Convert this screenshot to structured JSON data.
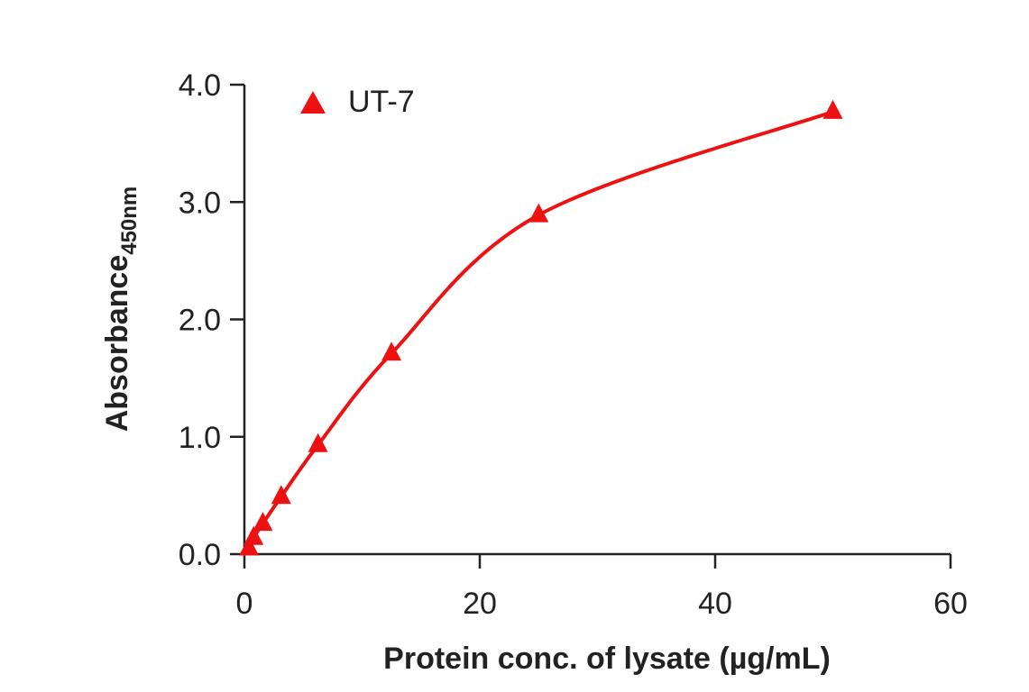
{
  "chart_data": {
    "type": "scatter",
    "title": "",
    "xlabel": "Protein conc. of lysate (µg/mL)",
    "ylabel": {
      "main": "Absorbance",
      "subscript": "450nm"
    },
    "xlim": [
      0,
      60
    ],
    "ylim": [
      0,
      4.0
    ],
    "x_ticks": [
      "0",
      "20",
      "40",
      "60"
    ],
    "y_ticks": [
      "0.0",
      "1.0",
      "2.0",
      "3.0",
      "4.0"
    ],
    "grid": false,
    "legend": "top-left",
    "series": [
      {
        "name": "UT-7",
        "marker": "triangle",
        "color": "#ee1111",
        "fit": "smooth-curve",
        "x": [
          0.39,
          0.78,
          1.56,
          3.13,
          6.25,
          12.5,
          25,
          50
        ],
        "y": [
          0.05,
          0.14,
          0.26,
          0.49,
          0.93,
          1.71,
          2.89,
          3.77
        ]
      }
    ]
  }
}
